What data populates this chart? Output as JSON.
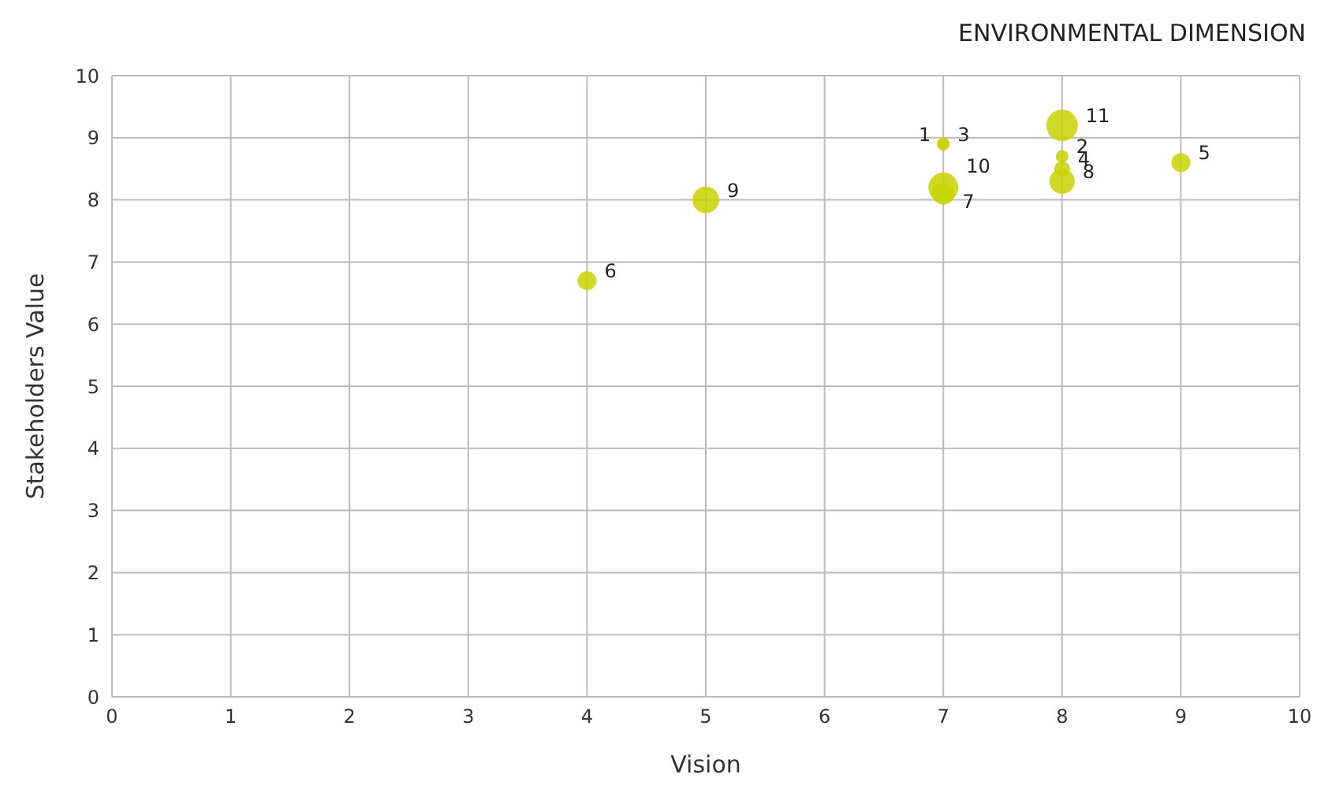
{
  "chart_data": {
    "type": "bubble",
    "title": "ENVIRONMENTAL DIMENSION",
    "xlabel": "Vision",
    "ylabel": "Stakeholders Value",
    "xlim": [
      0,
      10
    ],
    "ylim": [
      0,
      10
    ],
    "xticks": [
      0,
      1,
      2,
      3,
      4,
      5,
      6,
      7,
      8,
      9,
      10
    ],
    "yticks": [
      0,
      1,
      2,
      3,
      4,
      5,
      6,
      7,
      8,
      9,
      10
    ],
    "grid": true,
    "legend": false,
    "marker": "circle",
    "series": [
      {
        "name": "1",
        "color": "#c8d400",
        "x": [
          7
        ],
        "values": [
          8.9
        ],
        "sizes": [
          0.16
        ]
      },
      {
        "name": "2",
        "color": "#c8d400",
        "x": [
          8
        ],
        "values": [
          8.7
        ],
        "sizes": [
          0.16
        ]
      },
      {
        "name": "3",
        "color": "#c8d400",
        "x": [
          7
        ],
        "values": [
          8.9
        ],
        "sizes": [
          0.16
        ]
      },
      {
        "name": "4",
        "color": "#c8d400",
        "x": [
          8
        ],
        "values": [
          8.5
        ],
        "sizes": [
          0.25
        ]
      },
      {
        "name": "5",
        "color": "#c8d400",
        "x": [
          9
        ],
        "values": [
          8.6
        ],
        "sizes": [
          0.36
        ]
      },
      {
        "name": "6",
        "color": "#c8d400",
        "x": [
          4
        ],
        "values": [
          6.7
        ],
        "sizes": [
          0.36
        ]
      },
      {
        "name": "7",
        "color": "#c8d400",
        "x": [
          7
        ],
        "values": [
          8.1
        ],
        "sizes": [
          0.49
        ]
      },
      {
        "name": "8",
        "color": "#c8d400",
        "x": [
          8
        ],
        "values": [
          8.3
        ],
        "sizes": [
          0.64
        ]
      },
      {
        "name": "9",
        "color": "#c8d400",
        "x": [
          5
        ],
        "values": [
          8.0
        ],
        "sizes": [
          0.72
        ]
      },
      {
        "name": "10",
        "color": "#c8d400",
        "x": [
          7
        ],
        "values": [
          8.2
        ],
        "sizes": [
          0.9
        ]
      },
      {
        "name": "11",
        "color": "#c8d400",
        "x": [
          8
        ],
        "values": [
          9.2
        ],
        "sizes": [
          1
        ]
      }
    ]
  }
}
